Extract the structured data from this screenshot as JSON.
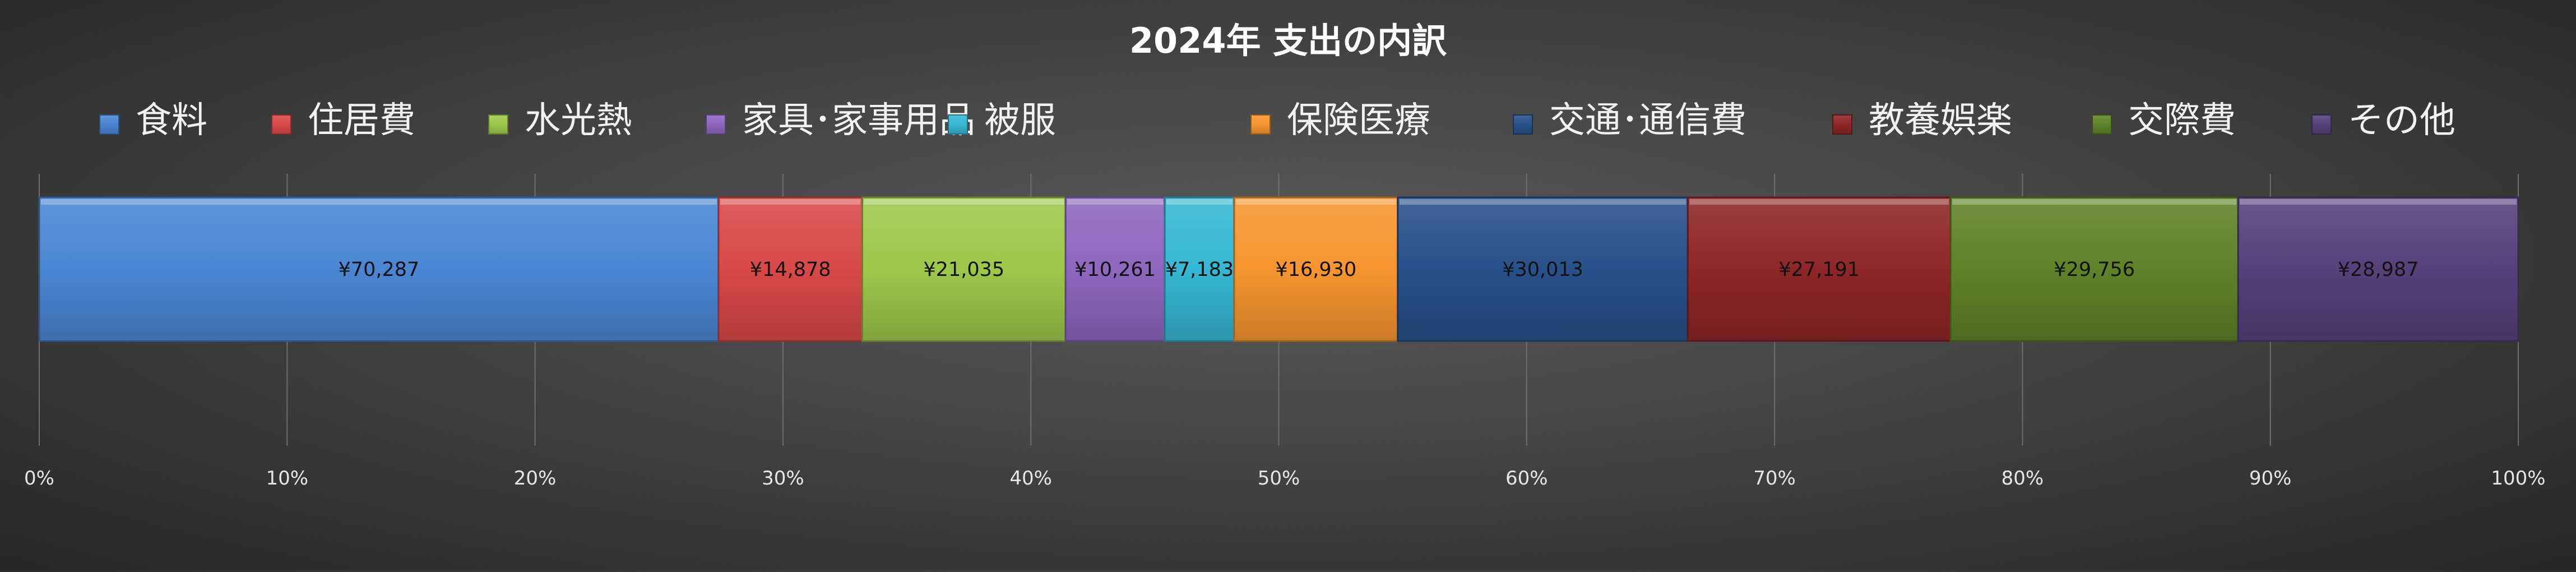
{
  "chart_data": {
    "type": "bar",
    "orientation": "horizontal",
    "stacking": "percent",
    "title": "2024年 支出の内訳",
    "legend_position": "top",
    "grid": true,
    "xlim": [
      0,
      100
    ],
    "x_ticks": [
      "0%",
      "10%",
      "20%",
      "30%",
      "40%",
      "50%",
      "60%",
      "70%",
      "80%",
      "90%",
      "100%"
    ],
    "categories": [
      ""
    ],
    "series": [
      {
        "name": "食料",
        "values": [
          70287
        ],
        "label": "¥70,287",
        "color": "#4A86D4"
      },
      {
        "name": "住居費",
        "values": [
          14878
        ],
        "label": "¥14,878",
        "color": "#D94848"
      },
      {
        "name": "水光熱",
        "values": [
          21035
        ],
        "label": "¥21,035",
        "color": "#9DC84A"
      },
      {
        "name": "家具･家事用品",
        "values": [
          10261
        ],
        "label": "¥10,261",
        "color": "#8E67BF"
      },
      {
        "name": "被服",
        "values": [
          7183
        ],
        "label": "¥7,183",
        "color": "#36B7D3"
      },
      {
        "name": "保険医療",
        "values": [
          16930
        ],
        "label": "¥16,930",
        "color": "#F79530"
      },
      {
        "name": "交通･通信費",
        "values": [
          30013
        ],
        "label": "¥30,013",
        "color": "#28508A"
      },
      {
        "name": "教養娯楽",
        "values": [
          27191
        ],
        "label": "¥27,191",
        "color": "#8E2626"
      },
      {
        "name": "交際費",
        "values": [
          29756
        ],
        "label": "¥29,756",
        "color": "#5F8228"
      },
      {
        "name": "その他",
        "values": [
          28987
        ],
        "label": "¥28,987",
        "color": "#57407A"
      }
    ]
  }
}
